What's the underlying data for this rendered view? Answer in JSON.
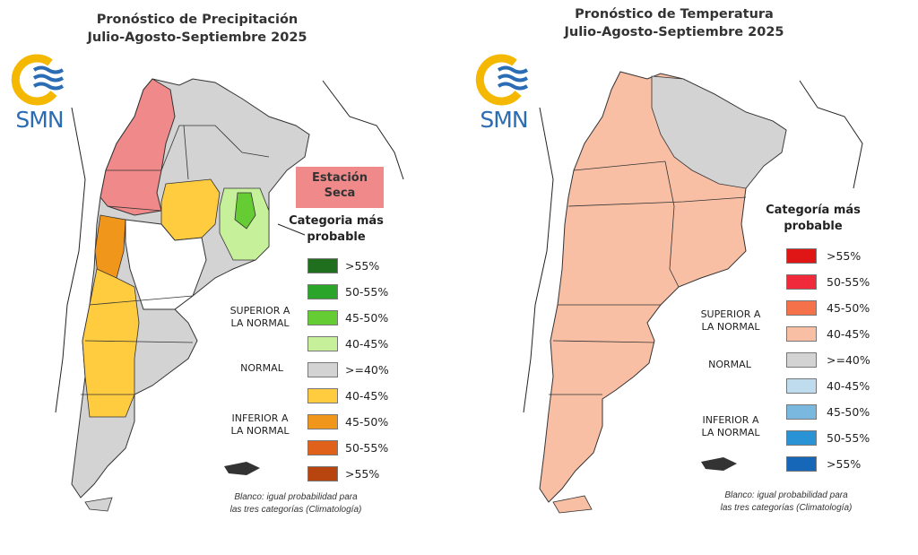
{
  "precip": {
    "title_line1": "Pronóstico de Precipitación",
    "title_line2": "Julio-Agosto-Septiembre 2025",
    "dry_season_line1": "Estación",
    "dry_season_line2": "Seca",
    "legend_title_line1": "Categoria más",
    "legend_title_line2": "probable",
    "legend_items": [
      {
        "label": ">55%",
        "color": "#1f6f1f"
      },
      {
        "label": "50-55%",
        "color": "#2aa52a"
      },
      {
        "label": "45-50%",
        "color": "#66cc33"
      },
      {
        "label": "40-45%",
        "color": "#c6f09a"
      },
      {
        "label": ">=40%",
        "color": "#d3d3d3"
      },
      {
        "label": "40-45%",
        "color": "#ffcc40"
      },
      {
        "label": "45-50%",
        "color": "#f0961a"
      },
      {
        "label": "50-55%",
        "color": "#e0621a"
      },
      {
        "label": ">55%",
        "color": "#b8440f"
      }
    ],
    "group_superior_line1": "SUPERIOR A",
    "group_superior_line2": "LA NORMAL",
    "group_normal": "NORMAL",
    "group_inferior_line1": "INFERIOR A",
    "group_inferior_line2": "LA NORMAL",
    "note_line1": "Blanco: igual probabilidad para",
    "note_line2": "las tres categorías (Climatología)"
  },
  "temp": {
    "title_line1": "Pronóstico de Temperatura",
    "title_line2": "Julio-Agosto-Septiembre 2025",
    "legend_title_line1": "Categoría más",
    "legend_title_line2": "probable",
    "legend_items": [
      {
        "label": ">55%",
        "color": "#e01515"
      },
      {
        "label": "50-55%",
        "color": "#f02a3a"
      },
      {
        "label": "45-50%",
        "color": "#f5714a"
      },
      {
        "label": "40-45%",
        "color": "#f9bfa5"
      },
      {
        "label": ">=40%",
        "color": "#d3d3d3"
      },
      {
        "label": "40-45%",
        "color": "#bfdcee"
      },
      {
        "label": "45-50%",
        "color": "#7ab8e0"
      },
      {
        "label": "50-55%",
        "color": "#2a93d5"
      },
      {
        "label": ">55%",
        "color": "#1667b8"
      }
    ],
    "group_superior_line1": "SUPERIOR A",
    "group_superior_line2": "LA NORMAL",
    "group_normal": "NORMAL",
    "group_inferior_line1": "INFERIOR A",
    "group_inferior_line2": "LA NORMAL",
    "note_line1": "Blanco: igual probabilidad para",
    "note_line2": "las tres categorías (Climatología)"
  },
  "logo_text": "SMN",
  "colors": {
    "logo_ring": "#f5b800",
    "logo_waves": "#2a6db5",
    "dry_season": "#f08a8a",
    "normal_gray": "#d3d3d3",
    "below_40_45": "#ffcc40",
    "below_45_50": "#f0961a",
    "above_40_45_precip": "#c6f09a",
    "dry_region": "#f08a8a",
    "temp_above_40_45": "#f9bfa5",
    "boundary": "#333333"
  }
}
